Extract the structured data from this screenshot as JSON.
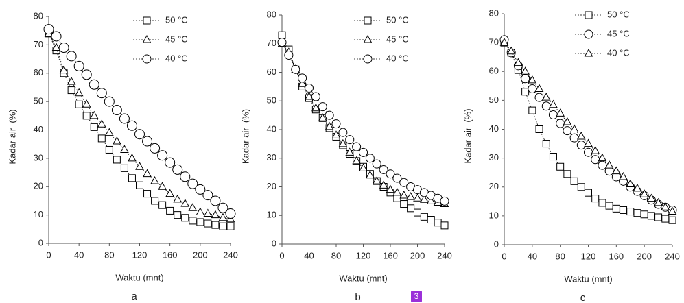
{
  "chart_data": [
    {
      "type": "line",
      "caption": "a",
      "xlabel": "Waktu (mnt)",
      "ylabel": "Kadar air  (%)",
      "x": [
        0,
        10,
        20,
        30,
        40,
        50,
        60,
        70,
        80,
        90,
        100,
        110,
        120,
        130,
        140,
        150,
        160,
        170,
        180,
        190,
        200,
        210,
        220,
        230,
        240
      ],
      "xlim": [
        0,
        240
      ],
      "ylim": [
        0,
        80
      ],
      "xticks": [
        0,
        40,
        80,
        120,
        160,
        200,
        240
      ],
      "yticks": [
        0,
        10,
        20,
        30,
        40,
        50,
        60,
        70,
        80
      ],
      "series": [
        {
          "name": "50 °C",
          "marker": "square",
          "color": "#000",
          "values": [
            74,
            68,
            60,
            54,
            49,
            45,
            41,
            37,
            33,
            29.5,
            26.5,
            23,
            20.5,
            17.5,
            15,
            13.5,
            11.5,
            10,
            9,
            8,
            7.5,
            7,
            6.5,
            6,
            6
          ]
        },
        {
          "name": "45 °C",
          "marker": "triangle",
          "color": "#000",
          "values": [
            74,
            69,
            61,
            57,
            53,
            49,
            45,
            42,
            39,
            36,
            33,
            30,
            27,
            24.5,
            22,
            20,
            17.5,
            15.5,
            14,
            12.5,
            11,
            10.5,
            10,
            9,
            8.5
          ]
        },
        {
          "name": "40 °C",
          "marker": "circle",
          "color": "#000",
          "values": [
            75.5,
            73,
            69,
            66,
            62.5,
            59.5,
            56,
            53,
            50,
            47,
            44,
            41.5,
            38.5,
            36,
            33.5,
            31,
            28.5,
            26,
            23.5,
            21,
            19,
            17,
            15,
            12.5,
            10.5
          ]
        }
      ]
    },
    {
      "type": "line",
      "caption": "b",
      "xlabel": "Waktu (mnt)",
      "ylabel": "Kadar air  (%)",
      "x": [
        0,
        10,
        20,
        30,
        40,
        50,
        60,
        70,
        80,
        90,
        100,
        110,
        120,
        130,
        140,
        150,
        160,
        170,
        180,
        190,
        200,
        210,
        220,
        230,
        240
      ],
      "xlim": [
        0,
        240
      ],
      "ylim": [
        0,
        80
      ],
      "xticks": [
        0,
        40,
        80,
        120,
        160,
        200,
        240
      ],
      "yticks": [
        0,
        10,
        20,
        30,
        40,
        50,
        60,
        70,
        80
      ],
      "series": [
        {
          "name": "50 °C",
          "marker": "square",
          "color": "#000",
          "values": [
            73,
            68,
            61,
            55,
            51,
            47,
            44,
            40.5,
            37.5,
            34.5,
            31.5,
            29,
            27,
            24.5,
            22,
            20,
            18,
            16,
            14,
            12.5,
            11,
            9.5,
            8.5,
            7.5,
            6.5
          ]
        },
        {
          "name": "45 °C",
          "marker": "triangle",
          "color": "#000",
          "values": [
            70,
            67,
            61,
            56,
            51.5,
            47.5,
            44,
            41,
            38,
            35,
            32,
            29,
            26.5,
            24,
            22,
            20.5,
            19,
            18,
            17,
            16.5,
            16,
            15.5,
            15,
            14.5,
            14
          ]
        },
        {
          "name": "40 °C",
          "marker": "circle",
          "color": "#000",
          "values": [
            70.5,
            66,
            61,
            58,
            54.5,
            51.5,
            48,
            45,
            42,
            39,
            36.5,
            34,
            32,
            30,
            28,
            26,
            24.5,
            23,
            21.5,
            20,
            19,
            18,
            17,
            16,
            15
          ]
        }
      ]
    },
    {
      "type": "line",
      "caption": "c",
      "xlabel": "Waktu (mnt)",
      "ylabel": "Kadar air  (%)",
      "x": [
        0,
        10,
        20,
        30,
        40,
        50,
        60,
        70,
        80,
        90,
        100,
        110,
        120,
        130,
        140,
        150,
        160,
        170,
        180,
        190,
        200,
        210,
        220,
        230,
        240
      ],
      "xlim": [
        0,
        240
      ],
      "ylim": [
        0,
        80
      ],
      "xticks": [
        0,
        40,
        80,
        120,
        160,
        200,
        240
      ],
      "yticks": [
        0,
        10,
        20,
        30,
        40,
        50,
        60,
        70,
        80
      ],
      "series": [
        {
          "name": "50 °C",
          "marker": "square",
          "color": "#000",
          "values": [
            70,
            66.5,
            60.5,
            53,
            46.5,
            40,
            35,
            30.5,
            27,
            24.5,
            22,
            20,
            18,
            16,
            14.5,
            13.5,
            12.5,
            12,
            11.5,
            11,
            10.5,
            10,
            9.5,
            9,
            8.5
          ]
        },
        {
          "name": "45 °C",
          "marker": "circle",
          "color": "#000",
          "values": [
            71,
            66.5,
            62,
            57.5,
            54,
            51,
            48,
            45,
            42,
            39.5,
            37,
            34.5,
            32,
            29.5,
            27.5,
            25.5,
            23.5,
            22,
            20,
            18.5,
            17,
            15.5,
            14,
            13,
            12
          ]
        },
        {
          "name": "40 °C",
          "marker": "triangle",
          "color": "#000",
          "values": [
            70,
            67,
            63,
            60,
            57,
            54,
            51,
            48.5,
            45.5,
            42.5,
            40,
            37.5,
            35,
            32.5,
            30,
            27.5,
            25.5,
            23.5,
            21,
            19.5,
            17.5,
            16,
            14.5,
            13,
            11.5
          ]
        }
      ]
    }
  ],
  "badge": "3"
}
